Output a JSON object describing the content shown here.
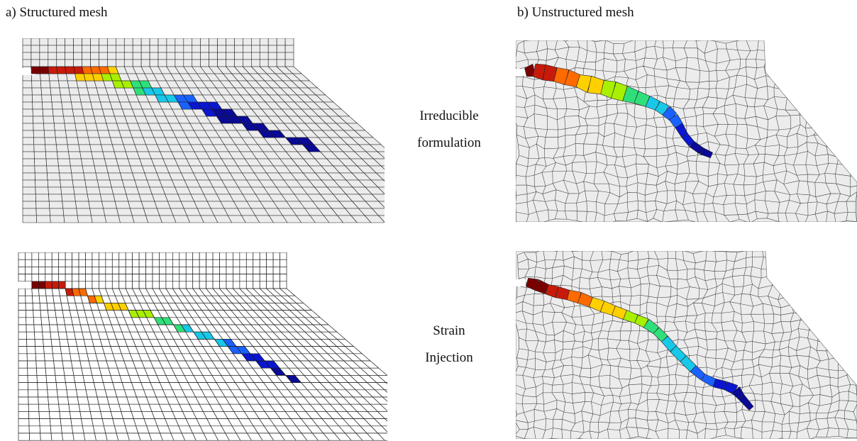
{
  "headings": {
    "structured": "a) Structured mesh",
    "unstructured": "b) Unstructured mesh"
  },
  "rows": {
    "irreducible": {
      "line1": "Irreducible",
      "line2": "formulation"
    },
    "strain": {
      "line1": "Strain",
      "line2": "Injection"
    }
  },
  "colors": {
    "mesh_fill_light": "#ececec",
    "mesh_fill_white": "#ffffff",
    "mesh_line": "#222222",
    "jet_scale": [
      "#7a0000",
      "#c81a0a",
      "#ff6a00",
      "#ffd000",
      "#a8f000",
      "#2fe07a",
      "#18c8e8",
      "#1a62ff",
      "#0a16d0",
      "#0a0a96"
    ]
  }
}
